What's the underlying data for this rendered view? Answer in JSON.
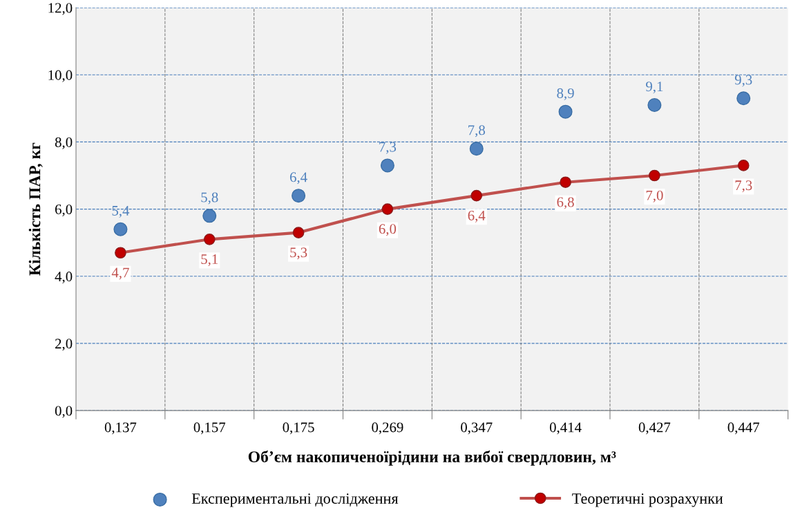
{
  "chart_data": {
    "type": "line",
    "xlabel": "Об’єм накопиченоїрідини на вибої свердловин, м³",
    "ylabel": "Кількість ПАР, кг",
    "categories": [
      "0,137",
      "0,157",
      "0,175",
      "0,269",
      "0,347",
      "0,414",
      "0,427",
      "0,447"
    ],
    "series": [
      {
        "name": "Експериментальні дослідження",
        "type": "scatter",
        "color": "#4f81bd",
        "values": [
          5.4,
          5.8,
          6.4,
          7.3,
          7.8,
          8.9,
          9.1,
          9.3
        ],
        "value_labels": [
          "5,4",
          "5,8",
          "6,4",
          "7,3",
          "7,8",
          "8,9",
          "9,1",
          "9,3"
        ]
      },
      {
        "name": "Теоретичні розрахунки",
        "color": "#c0504d",
        "values": [
          4.7,
          5.1,
          5.3,
          6.0,
          6.4,
          6.8,
          7.0,
          7.3
        ],
        "value_labels": [
          "4,7",
          "5,1",
          "5,3",
          "6,0",
          "6,4",
          "6,8",
          "7,0",
          "7,3"
        ]
      }
    ],
    "ylim": [
      0,
      12
    ],
    "yticks": [
      {
        "value": 0,
        "label": "0,0"
      },
      {
        "value": 2,
        "label": "2,0"
      },
      {
        "value": 4,
        "label": "4,0"
      },
      {
        "value": 6,
        "label": "6,0"
      },
      {
        "value": 8,
        "label": "8,0"
      },
      {
        "value": 10,
        "label": "10,0"
      },
      {
        "value": 12,
        "label": "12,0"
      }
    ],
    "grid": true,
    "legend": "bottom",
    "marker": "circle"
  }
}
